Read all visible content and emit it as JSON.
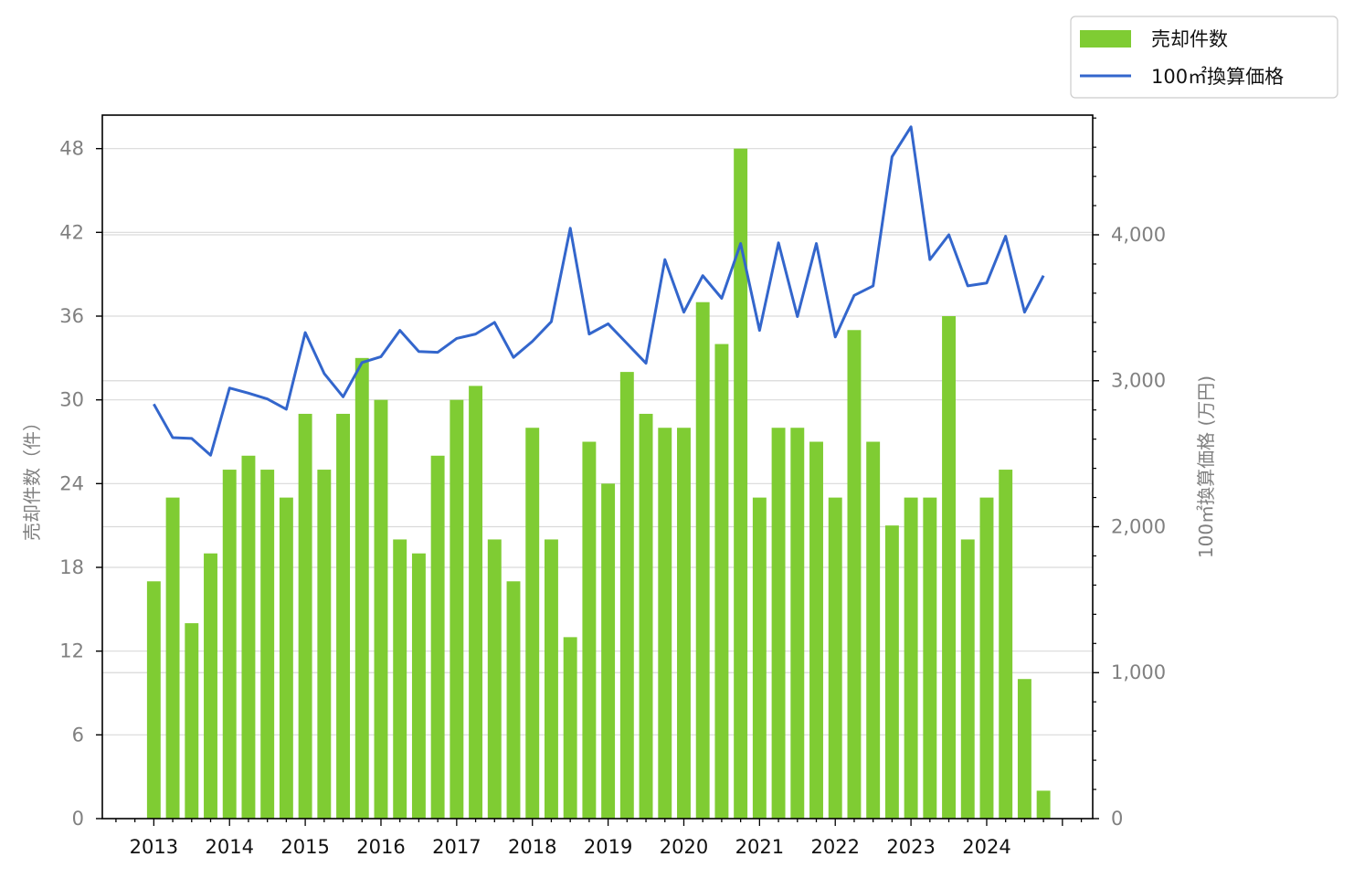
{
  "chart_data": {
    "type": "bar+line",
    "colors": {
      "bar": "#7fcc33",
      "line": "#3366cc",
      "grid": "#d9d9d9",
      "axis": "#000000"
    },
    "legend": {
      "placement": "top-right",
      "bar_label": "売却件数",
      "line_label": "100㎡換算価格"
    },
    "left_axis": {
      "label": "売却件数（件）",
      "ylim": [
        0,
        50.4
      ],
      "ticks": [
        0,
        6,
        12,
        18,
        24,
        30,
        36,
        42,
        48
      ],
      "tick_labels": [
        "0",
        "6",
        "12",
        "18",
        "24",
        "30",
        "36",
        "42",
        "48"
      ]
    },
    "right_axis": {
      "label": "100㎡換算価格 (万円)",
      "ylim": [
        0,
        4820
      ],
      "ticks": [
        0,
        1000,
        2000,
        3000,
        4000
      ],
      "tick_labels": [
        "0",
        "1,000",
        "2,000",
        "3,000",
        "4,000"
      ]
    },
    "x_axis": {
      "xlim": [
        2012.32,
        2025.4
      ],
      "year_ticks": [
        2013,
        2014,
        2015,
        2016,
        2017,
        2018,
        2019,
        2020,
        2021,
        2022,
        2023,
        2024
      ],
      "year_labels": [
        "2013",
        "2014",
        "2015",
        "2016",
        "2017",
        "2018",
        "2019",
        "2020",
        "2021",
        "2022",
        "2023",
        "2024"
      ]
    },
    "grid": "horizontal",
    "periods": [
      "2013 Q1",
      "2013 Q2",
      "2013 Q3",
      "2013 Q4",
      "2014 Q1",
      "2014 Q2",
      "2014 Q3",
      "2014 Q4",
      "2015 Q1",
      "2015 Q2",
      "2015 Q3",
      "2015 Q4",
      "2016 Q1",
      "2016 Q2",
      "2016 Q3",
      "2016 Q4",
      "2017 Q1",
      "2017 Q2",
      "2017 Q3",
      "2017 Q4",
      "2018 Q1",
      "2018 Q2",
      "2018 Q3",
      "2018 Q4",
      "2019 Q1",
      "2019 Q2",
      "2019 Q3",
      "2019 Q4",
      "2020 Q1",
      "2020 Q2",
      "2020 Q3",
      "2020 Q4",
      "2021 Q1",
      "2021 Q2",
      "2021 Q3",
      "2021 Q4",
      "2022 Q1",
      "2022 Q2",
      "2022 Q3",
      "2022 Q4",
      "2023 Q1",
      "2023 Q2",
      "2023 Q3",
      "2023 Q4",
      "2024 Q1",
      "2024 Q2",
      "2024 Q3",
      "2024 Q4"
    ],
    "series": [
      {
        "name": "売却件数",
        "kind": "bar",
        "axis": "left",
        "values": [
          17,
          23,
          14,
          19,
          25,
          26,
          25,
          23,
          29,
          25,
          29,
          33,
          30,
          20,
          19,
          26,
          30,
          31,
          20,
          17,
          28,
          20,
          13,
          27,
          24,
          32,
          29,
          28,
          28,
          37,
          34,
          48,
          23,
          28,
          28,
          27,
          23,
          35,
          27,
          21,
          23,
          23,
          36,
          20,
          23,
          25,
          10,
          2
        ]
      },
      {
        "name": "100㎡換算価格",
        "kind": "line",
        "axis": "right",
        "values": [
          2840,
          2610,
          2605,
          2490,
          2950,
          2915,
          2875,
          2805,
          3330,
          3050,
          2890,
          3125,
          3165,
          3345,
          3200,
          3195,
          3290,
          3320,
          3400,
          3160,
          3270,
          3405,
          4045,
          3320,
          3390,
          3255,
          3120,
          3830,
          3470,
          3720,
          3565,
          3940,
          3345,
          3945,
          3440,
          3940,
          3300,
          3585,
          3650,
          4535,
          4740,
          3830,
          4000,
          3650,
          3670,
          3990,
          3470,
          3720
        ]
      }
    ]
  }
}
